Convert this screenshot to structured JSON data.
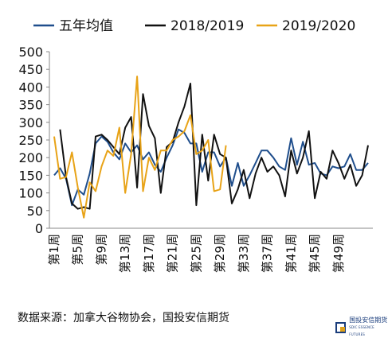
{
  "chart_data": {
    "type": "line",
    "ylim": [
      0,
      500
    ],
    "yticks": [
      0,
      50,
      100,
      150,
      200,
      250,
      300,
      350,
      400,
      450,
      500
    ],
    "x_tick_labels": [
      "第1周",
      "第5周",
      "第9周",
      "第13周",
      "第17周",
      "第21周",
      "第25周",
      "第29周",
      "第33周",
      "第37周",
      "第41周",
      "第45周",
      "第49周"
    ],
    "x_tick_weeks": [
      1,
      5,
      9,
      13,
      17,
      21,
      25,
      29,
      33,
      37,
      41,
      45,
      49
    ],
    "legend_position": "top",
    "grid": false,
    "series": [
      {
        "name": "五年均值",
        "color": "#1f4e8c",
        "values": [
          150,
          170,
          140,
          65,
          110,
          95,
          155,
          240,
          260,
          245,
          215,
          195,
          240,
          215,
          235,
          195,
          215,
          180,
          160,
          200,
          235,
          280,
          270,
          240,
          240,
          160,
          215,
          215,
          175,
          200,
          120,
          185,
          120,
          150,
          185,
          220,
          220,
          200,
          175,
          165,
          255,
          180,
          245,
          180,
          185,
          155,
          150,
          175,
          170,
          175,
          210,
          165,
          165,
          185
        ]
      },
      {
        "name": "2018/2019",
        "color": "#111111",
        "values": [
          null,
          280,
          145,
          70,
          55,
          60,
          55,
          260,
          265,
          250,
          230,
          210,
          285,
          315,
          115,
          380,
          290,
          255,
          100,
          230,
          245,
          300,
          345,
          410,
          65,
          265,
          135,
          265,
          210,
          200,
          70,
          110,
          165,
          85,
          155,
          200,
          160,
          175,
          150,
          90,
          220,
          155,
          200,
          275,
          85,
          160,
          140,
          220,
          185,
          140,
          180,
          120,
          150,
          235
        ]
      },
      {
        "name": "2019/2020",
        "color": "#e8a317",
        "values": [
          260,
          140,
          145,
          215,
          115,
          30,
          130,
          105,
          175,
          220,
          205,
          285,
          100,
          210,
          430,
          105,
          200,
          165,
          220,
          220,
          250,
          260,
          275,
          320,
          210,
          220,
          250,
          105,
          110,
          235
        ]
      }
    ]
  },
  "source_text": "数据来源：加拿大谷物协会，国投安信期货",
  "logo": {
    "name": "国投安信期货",
    "sub": "SDIC ESSENCE FUTURES"
  }
}
